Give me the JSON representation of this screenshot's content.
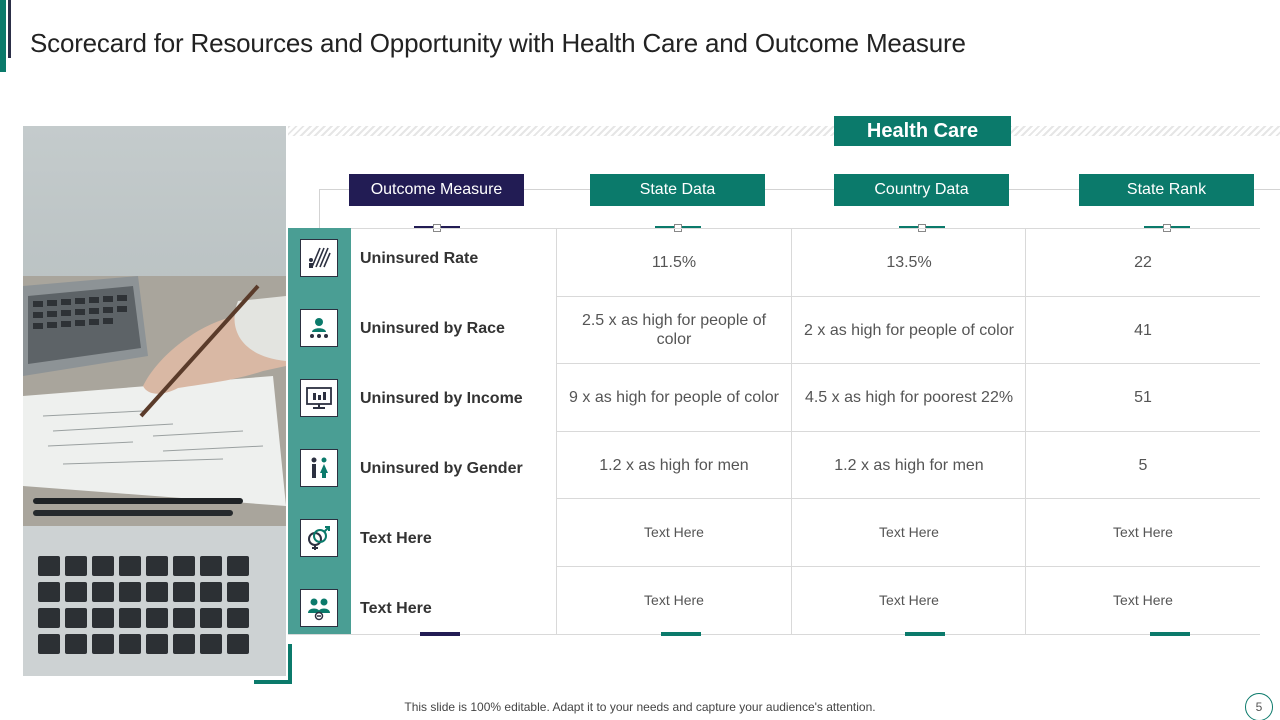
{
  "slide": {
    "title": "Scorecard for Resources and Opportunity with Health Care and Outcome Measure",
    "group_header": "Health Care",
    "footer": "This slide is 100% editable. Adapt it to your needs and capture your audience's attention.",
    "page_number": "5"
  },
  "columns": [
    "Outcome Measure",
    "State Data",
    "Country Data",
    "State Rank"
  ],
  "rows": [
    {
      "icon": "people-bars-icon",
      "label": "Uninsured Rate",
      "state": "11.5%",
      "country": "13.5%",
      "rank": "22"
    },
    {
      "icon": "person-group-icon",
      "label": "Uninsured by Race",
      "state": "2.5 x as high for people of color",
      "country": "2 x as high for people of color",
      "rank": "41"
    },
    {
      "icon": "monitor-chart-icon",
      "label": "Uninsured by Income",
      "state": "9 x as high for people of color",
      "country": "4.5 x as high for poorest 22%",
      "rank": "51"
    },
    {
      "icon": "man-woman-icon",
      "label": "Uninsured by Gender",
      "state": "1.2 x as high for men",
      "country": "1.2 x as high for men",
      "rank": "5"
    },
    {
      "icon": "gender-symbols-icon",
      "label": "Text Here",
      "state": "Text Here",
      "country": "Text Here",
      "rank": "Text Here"
    },
    {
      "icon": "couple-icon",
      "label": "Text Here",
      "state": "Text Here",
      "country": "Text Here",
      "rank": "Text Here"
    }
  ],
  "colors": {
    "teal": "#0b7a6b",
    "navy": "#221c54",
    "strip": "#4a9e94"
  }
}
